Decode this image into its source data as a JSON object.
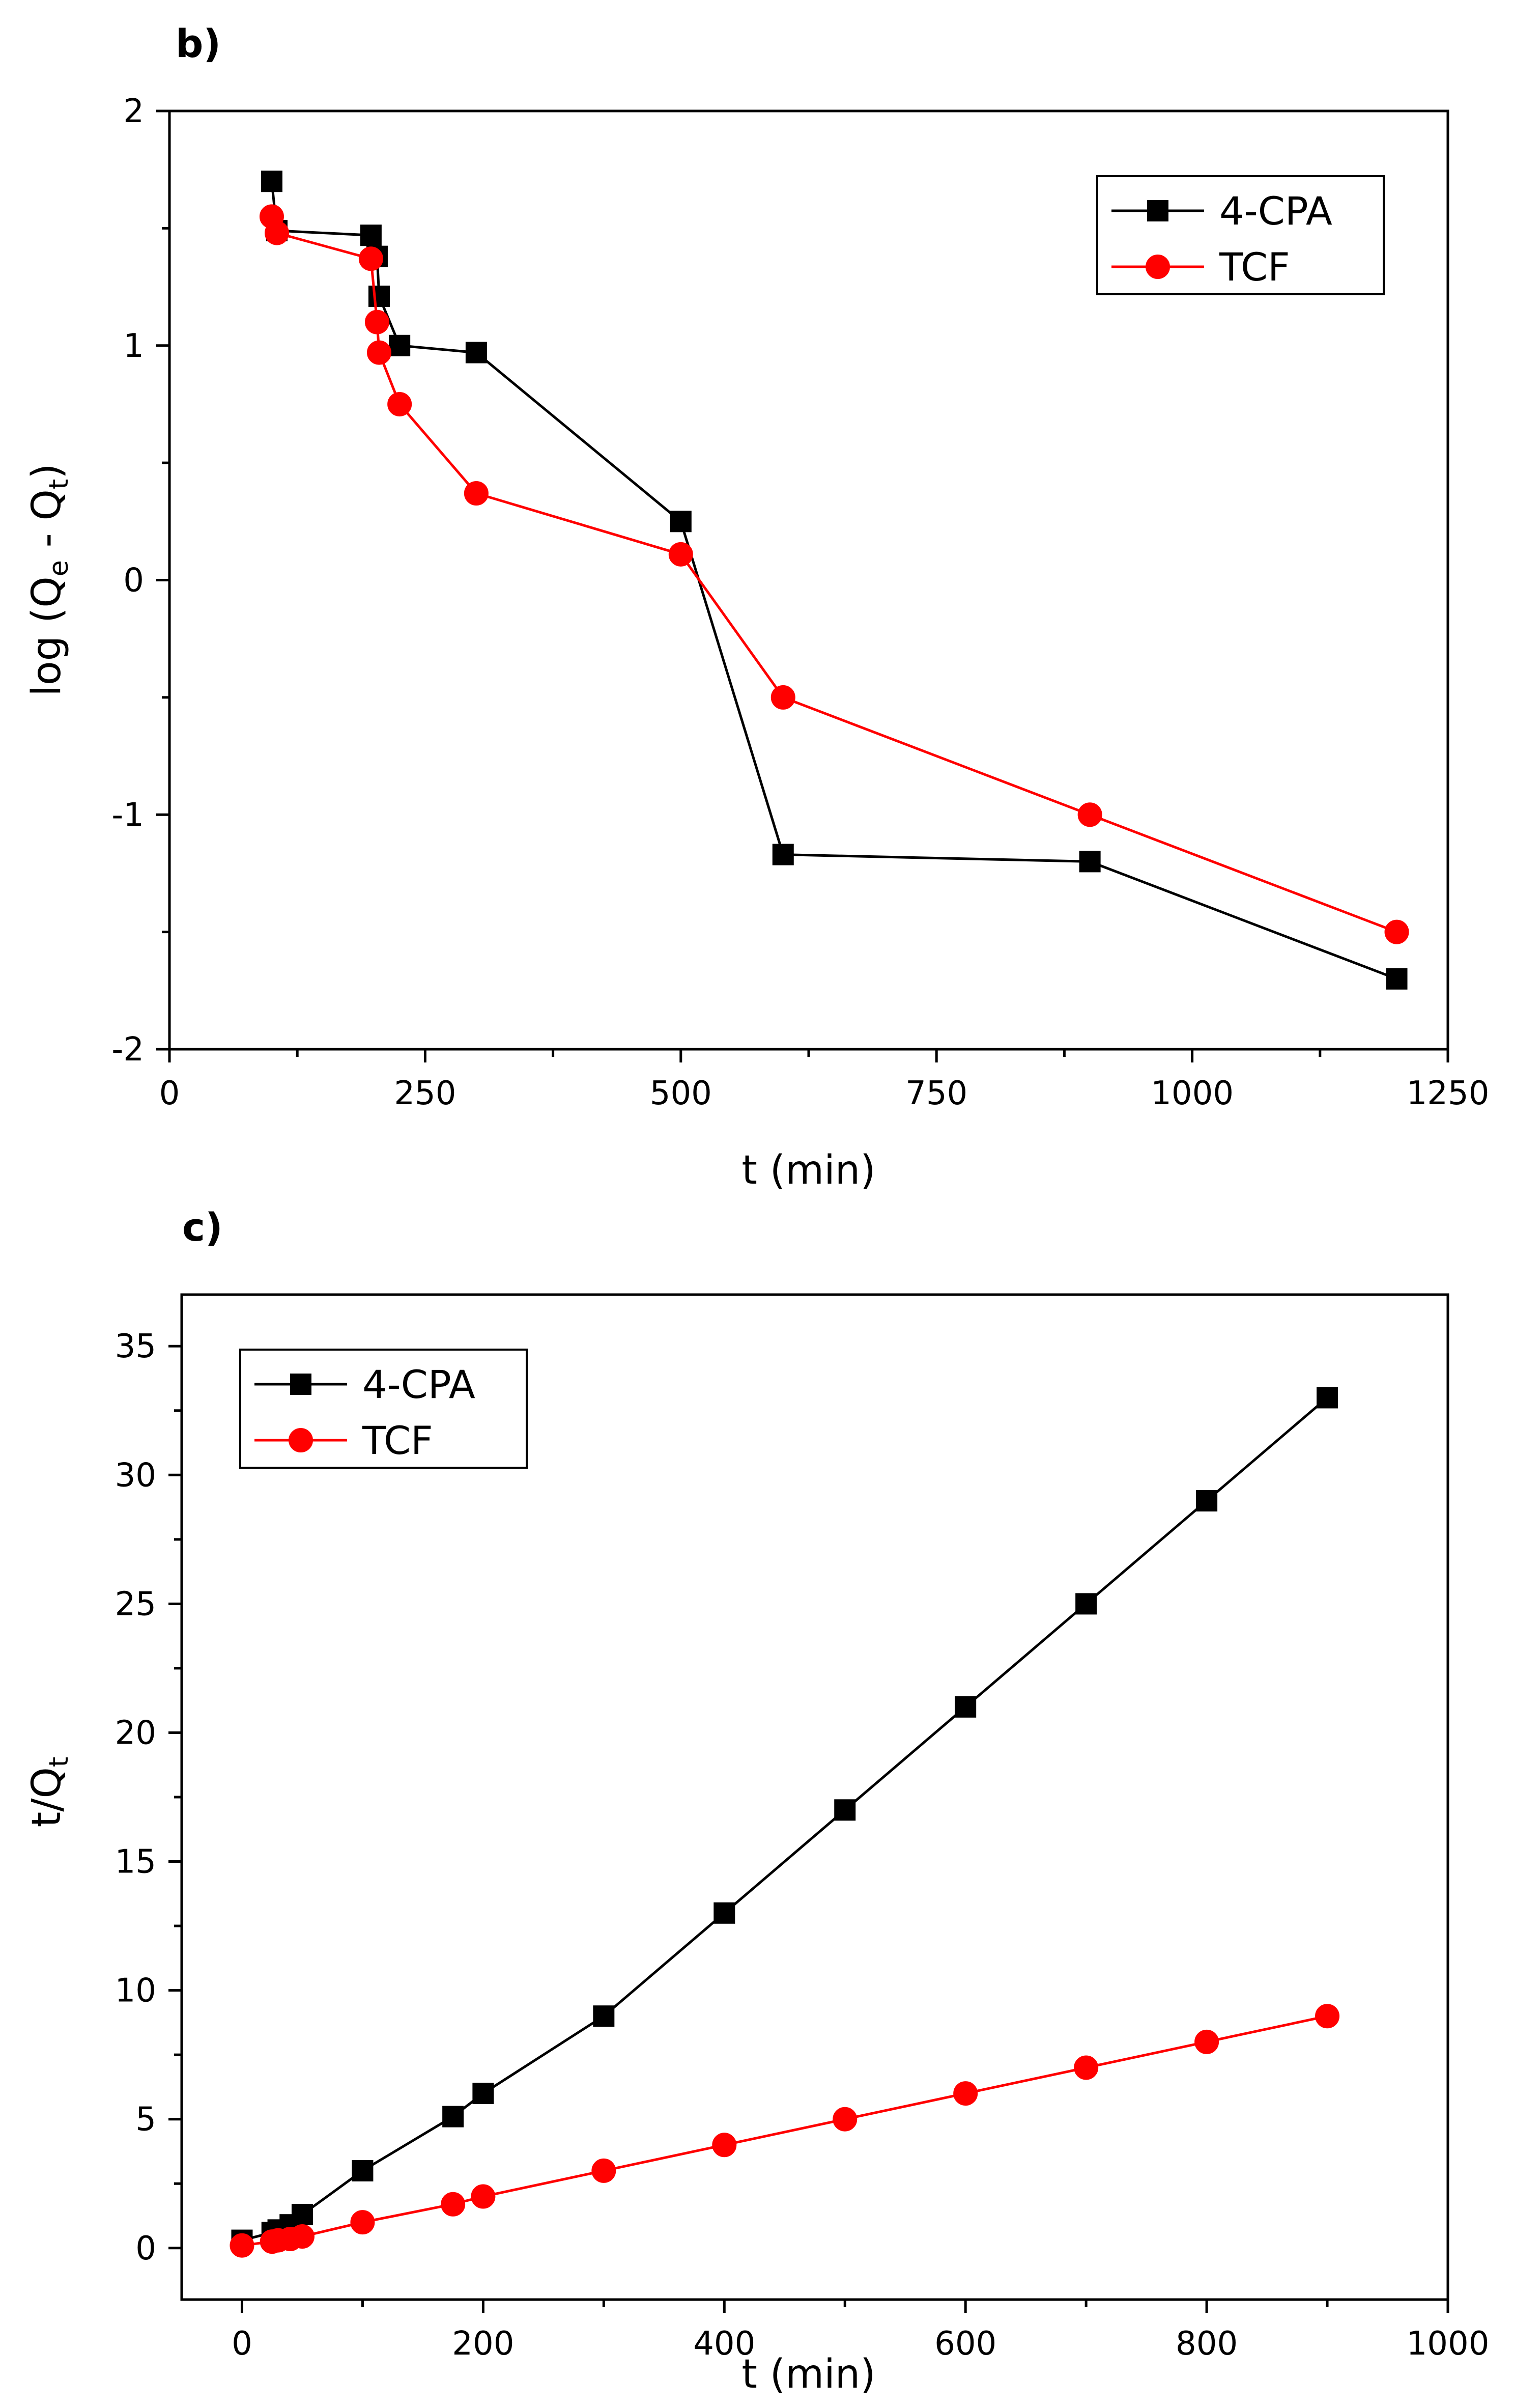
{
  "chart_data": [
    {
      "panel_label": "b)",
      "type": "line",
      "xlabel": "t (min)",
      "ylabel_main": "log (Q",
      "ylabel_sub_e": "e",
      "ylabel_middle": " - Q",
      "ylabel_sub_t": "t",
      "ylabel_end": ")",
      "xlim": [
        0,
        1250
      ],
      "ylim": [
        -2,
        2
      ],
      "x_major_ticks": [
        0,
        250,
        500,
        750,
        1000,
        1250
      ],
      "y_major_ticks": [
        -2,
        -1,
        0,
        1,
        2
      ],
      "x_tick_labels": [
        "0",
        "250",
        "500",
        "750",
        "1000",
        "1250"
      ],
      "y_tick_labels": [
        "-2",
        "-1",
        "0",
        "1",
        "2"
      ],
      "legend_position": "top-right",
      "series": [
        {
          "name": "4-CPA",
          "color": "#000000",
          "marker": "square",
          "x": [
            100,
            105,
            197,
            203,
            205,
            225,
            300,
            500,
            600,
            900,
            1200
          ],
          "y": [
            1.7,
            1.49,
            1.47,
            1.38,
            1.21,
            1.0,
            0.97,
            0.25,
            -1.17,
            -1.2,
            -1.7
          ]
        },
        {
          "name": "TCF",
          "color": "#ff0000",
          "marker": "circle",
          "x": [
            100,
            105,
            197,
            203,
            205,
            225,
            300,
            500,
            600,
            900,
            1200
          ],
          "y": [
            1.55,
            1.48,
            1.37,
            1.1,
            0.97,
            0.75,
            0.37,
            0.11,
            -0.5,
            -1.0,
            -1.5
          ]
        }
      ]
    },
    {
      "panel_label": "c)",
      "type": "line",
      "xlabel": "t (min)",
      "ylabel_main": "t/Q",
      "ylabel_sub_t": "t",
      "xlim": [
        -50,
        1000
      ],
      "ylim": [
        -2,
        37
      ],
      "x_major_ticks": [
        0,
        200,
        400,
        600,
        800,
        1000
      ],
      "y_major_ticks": [
        0,
        5,
        10,
        15,
        20,
        25,
        30,
        35
      ],
      "x_tick_labels": [
        "0",
        "200",
        "400",
        "600",
        "800",
        "1000"
      ],
      "y_tick_labels": [
        "0",
        "5",
        "10",
        "15",
        "20",
        "25",
        "30",
        "35"
      ],
      "legend_position": "top-left",
      "series": [
        {
          "name": "4-CPA",
          "color": "#000000",
          "marker": "square",
          "x": [
            0,
            25,
            30,
            40,
            50,
            100,
            175,
            200,
            300,
            400,
            500,
            600,
            700,
            800,
            900
          ],
          "y": [
            0.3,
            0.6,
            0.7,
            0.9,
            1.3,
            3.0,
            5.1,
            6.0,
            9.0,
            13.0,
            17.0,
            21.0,
            25.0,
            29.0,
            33.0
          ]
        },
        {
          "name": "TCF",
          "color": "#ff0000",
          "marker": "circle",
          "x": [
            0,
            25,
            30,
            40,
            50,
            100,
            175,
            200,
            300,
            400,
            500,
            600,
            700,
            800,
            900
          ],
          "y": [
            0.1,
            0.25,
            0.3,
            0.35,
            0.45,
            1.0,
            1.7,
            2.0,
            3.0,
            4.0,
            5.0,
            6.0,
            7.0,
            8.0,
            9.0
          ]
        }
      ]
    }
  ]
}
